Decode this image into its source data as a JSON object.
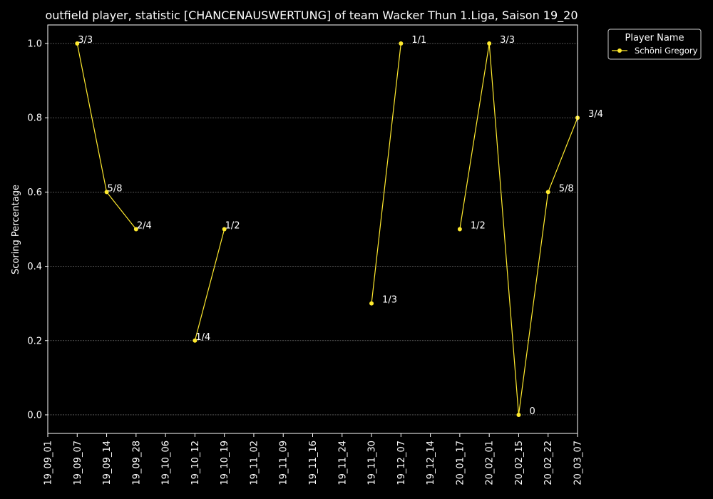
{
  "chart_data": {
    "type": "line",
    "title": "outfield player, statistic [CHANCENAUSWERTUNG] of team Wacker Thun 1.Liga, Saison 19_20",
    "xlabel": "",
    "ylabel": "Scoring Percentage",
    "ylim": [
      -0.05,
      1.05
    ],
    "yticks": [
      0.0,
      0.2,
      0.4,
      0.6,
      0.8,
      1.0
    ],
    "ytick_labels": [
      "0.0",
      "0.2",
      "0.4",
      "0.6",
      "0.8",
      "1.0"
    ],
    "categories": [
      "19_09_01",
      "19_09_07",
      "19_09_14",
      "19_09_28",
      "19_10_06",
      "19_10_12",
      "19_10_19",
      "19_11_02",
      "19_11_09",
      "19_11_16",
      "19_11_24",
      "19_11_30",
      "19_12_07",
      "19_12_14",
      "20_01_17",
      "20_02_01",
      "20_02_15",
      "20_02_22",
      "20_03_07"
    ],
    "grid": true,
    "legend": {
      "title": "Player Name",
      "placement": "top-right-outside"
    },
    "series": [
      {
        "name": "Schöni Gregory",
        "color": "#ffea2e",
        "points": [
          {
            "x": "19_09_07",
            "y": 1.0,
            "label": "3/3"
          },
          {
            "x": "19_09_14",
            "y": 0.6,
            "label": "5/8"
          },
          {
            "x": "19_09_28",
            "y": 0.5,
            "label": "2/4"
          },
          {
            "x": "19_10_06",
            "y": null,
            "label": ""
          },
          {
            "x": "19_10_12",
            "y": 0.2,
            "label": "1/4"
          },
          {
            "x": "19_10_19",
            "y": 0.5,
            "label": "1/2"
          },
          {
            "x": "19_11_02",
            "y": null,
            "label": ""
          },
          {
            "x": "19_11_30",
            "y": 0.3,
            "label": "1/3"
          },
          {
            "x": "19_12_07",
            "y": 1.0,
            "label": "1/1"
          },
          {
            "x": "19_12_14",
            "y": null,
            "label": ""
          },
          {
            "x": "20_01_17",
            "y": 0.5,
            "label": "1/2"
          },
          {
            "x": "20_02_01",
            "y": 1.0,
            "label": "3/3"
          },
          {
            "x": "20_02_15",
            "y": 0.0,
            "label": "0"
          },
          {
            "x": "20_02_22",
            "y": 0.6,
            "label": "5/8"
          },
          {
            "x": "20_03_07",
            "y": 0.8,
            "label": "3/4"
          }
        ]
      }
    ]
  }
}
